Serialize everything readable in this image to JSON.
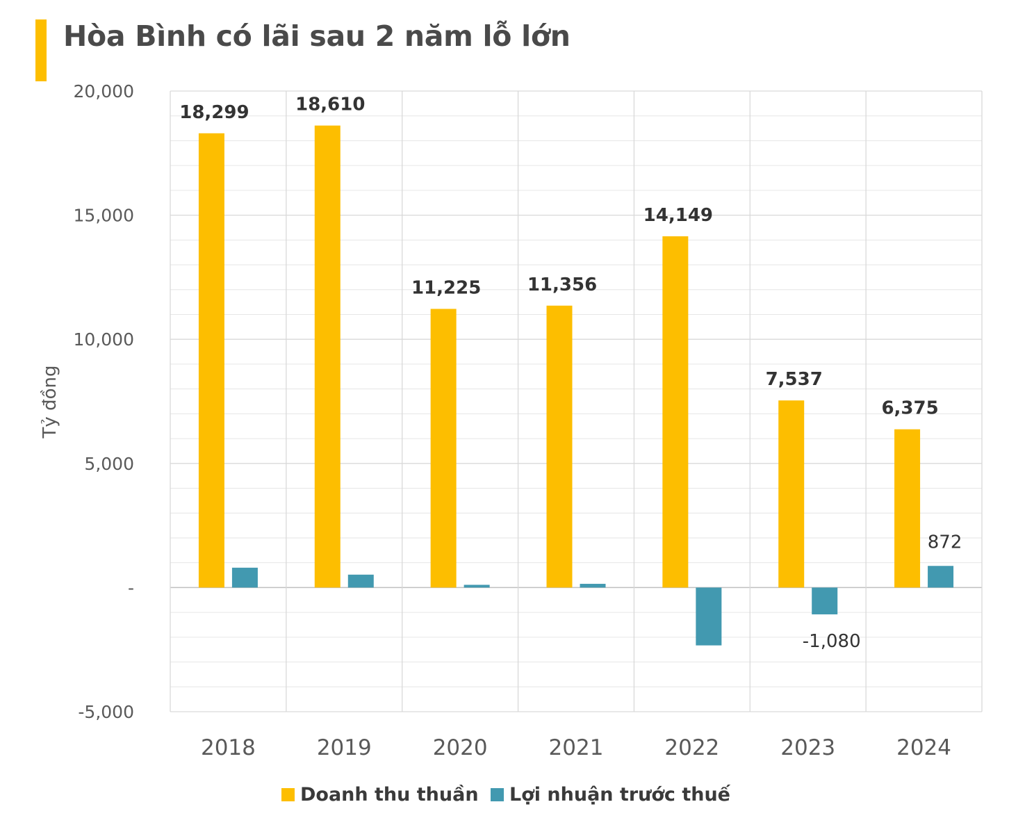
{
  "title": "Hòa Bình có lãi sau 2 năm lỗ lớn",
  "colors": {
    "accent": "#fdbe00",
    "revenue": "#fdbe00",
    "profit": "#4299b0",
    "grid": "#d9d9d9",
    "axis_text": "#595959"
  },
  "chart_data": {
    "type": "bar",
    "title": "Hòa Bình có lãi sau 2 năm lỗ lớn",
    "ylabel": "Tỷ đồng",
    "xlabel": "",
    "ylim": [
      -5000,
      20000
    ],
    "yticks": [
      20000,
      15000,
      10000,
      5000,
      0,
      -5000
    ],
    "ytick_labels": [
      "20,000",
      "15,000",
      "10,000",
      "5,000",
      "-",
      "-5,000"
    ],
    "categories": [
      "2018",
      "2019",
      "2020",
      "2021",
      "2022",
      "2023",
      "2024"
    ],
    "series": [
      {
        "name": "Doanh thu thuần",
        "values": [
          18299,
          18610,
          11225,
          11356,
          14149,
          7537,
          6375
        ],
        "labels": [
          "18,299",
          "18,610",
          "11,225",
          "11,356",
          "14,149",
          "7,537",
          "6,375"
        ]
      },
      {
        "name": "Lợi nhuận trước thuế",
        "values": [
          800,
          520,
          110,
          150,
          -2330,
          -1080,
          872
        ],
        "labels": [
          "",
          "",
          "",
          "",
          "",
          "-1,080",
          "872"
        ]
      }
    ],
    "grid": true,
    "legend_position": "bottom"
  }
}
